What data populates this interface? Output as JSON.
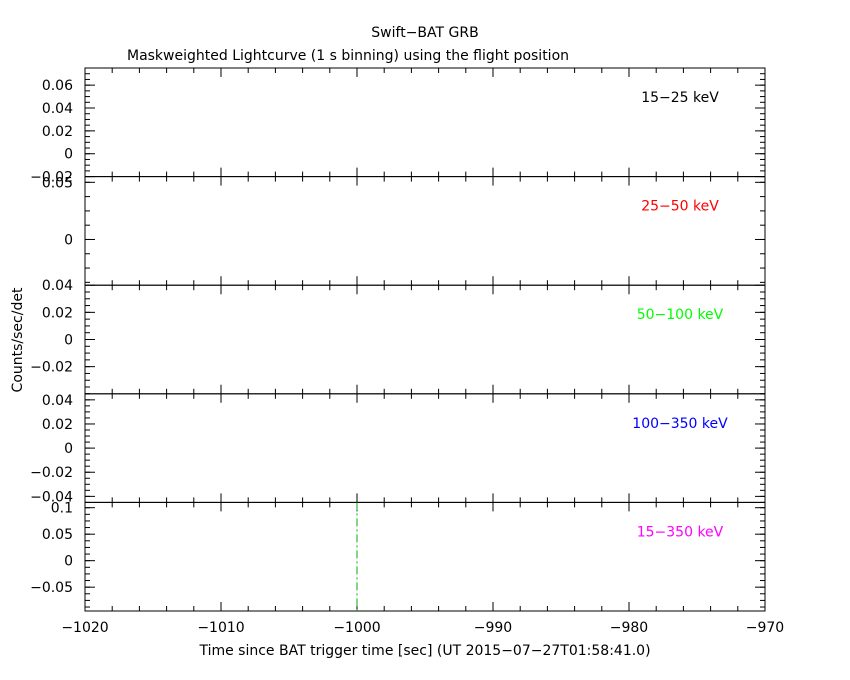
{
  "chart_data": {
    "type": "line",
    "title": "Swift−BAT GRB",
    "subtitle": "Maskweighted Lightcurve (1 s binning) using the flight position",
    "xlabel": "Time since BAT trigger time [sec] (UT 2015−07−27T01:58:41.0)",
    "ylabel": "Counts/sec/det",
    "xlim": [
      -1020,
      -970
    ],
    "x_ticks": [
      -1020,
      -1010,
      -1000,
      -990,
      -980,
      -970
    ],
    "x_tick_labels": [
      "−1020",
      "−1010",
      "−1000",
      "−990",
      "−980",
      "−970"
    ],
    "trigger_marker_x": -1000,
    "panels": [
      {
        "band": "15−25 keV",
        "color": "#000000",
        "ylim": [
          -0.02,
          0.075
        ],
        "y_ticks": [
          -0.02,
          0,
          0.02,
          0.04,
          0.06
        ],
        "y_tick_labels": [
          "−0.02",
          "0",
          "0.02",
          "0.04",
          "0.06"
        ]
      },
      {
        "band": "25−50 keV",
        "color": "#ff0000",
        "ylim": [
          -0.04,
          0.055
        ],
        "y_ticks": [
          0,
          0.05
        ],
        "y_tick_labels": [
          "0",
          "0.05"
        ]
      },
      {
        "band": "50−100 keV",
        "color": "#00ff00",
        "ylim": [
          -0.04,
          0.04
        ],
        "y_ticks": [
          -0.02,
          0,
          0.02,
          0.04
        ],
        "y_tick_labels": [
          "−0.02",
          "0",
          "0.02",
          "0.04"
        ]
      },
      {
        "band": "100−350 keV",
        "color": "#0000ff",
        "ylim": [
          -0.045,
          0.045
        ],
        "y_ticks": [
          -0.04,
          -0.02,
          0,
          0.02,
          0.04
        ],
        "y_tick_labels": [
          "−0.04",
          "−0.02",
          "0",
          "0.02",
          "0.04"
        ]
      },
      {
        "band": "15−350 keV",
        "color": "#ff00ff",
        "ylim": [
          -0.095,
          0.11
        ],
        "y_ticks": [
          -0.05,
          0,
          0.05,
          0.1
        ],
        "y_tick_labels": [
          "−0.05",
          "0",
          "0.05",
          "0.1"
        ]
      }
    ]
  }
}
